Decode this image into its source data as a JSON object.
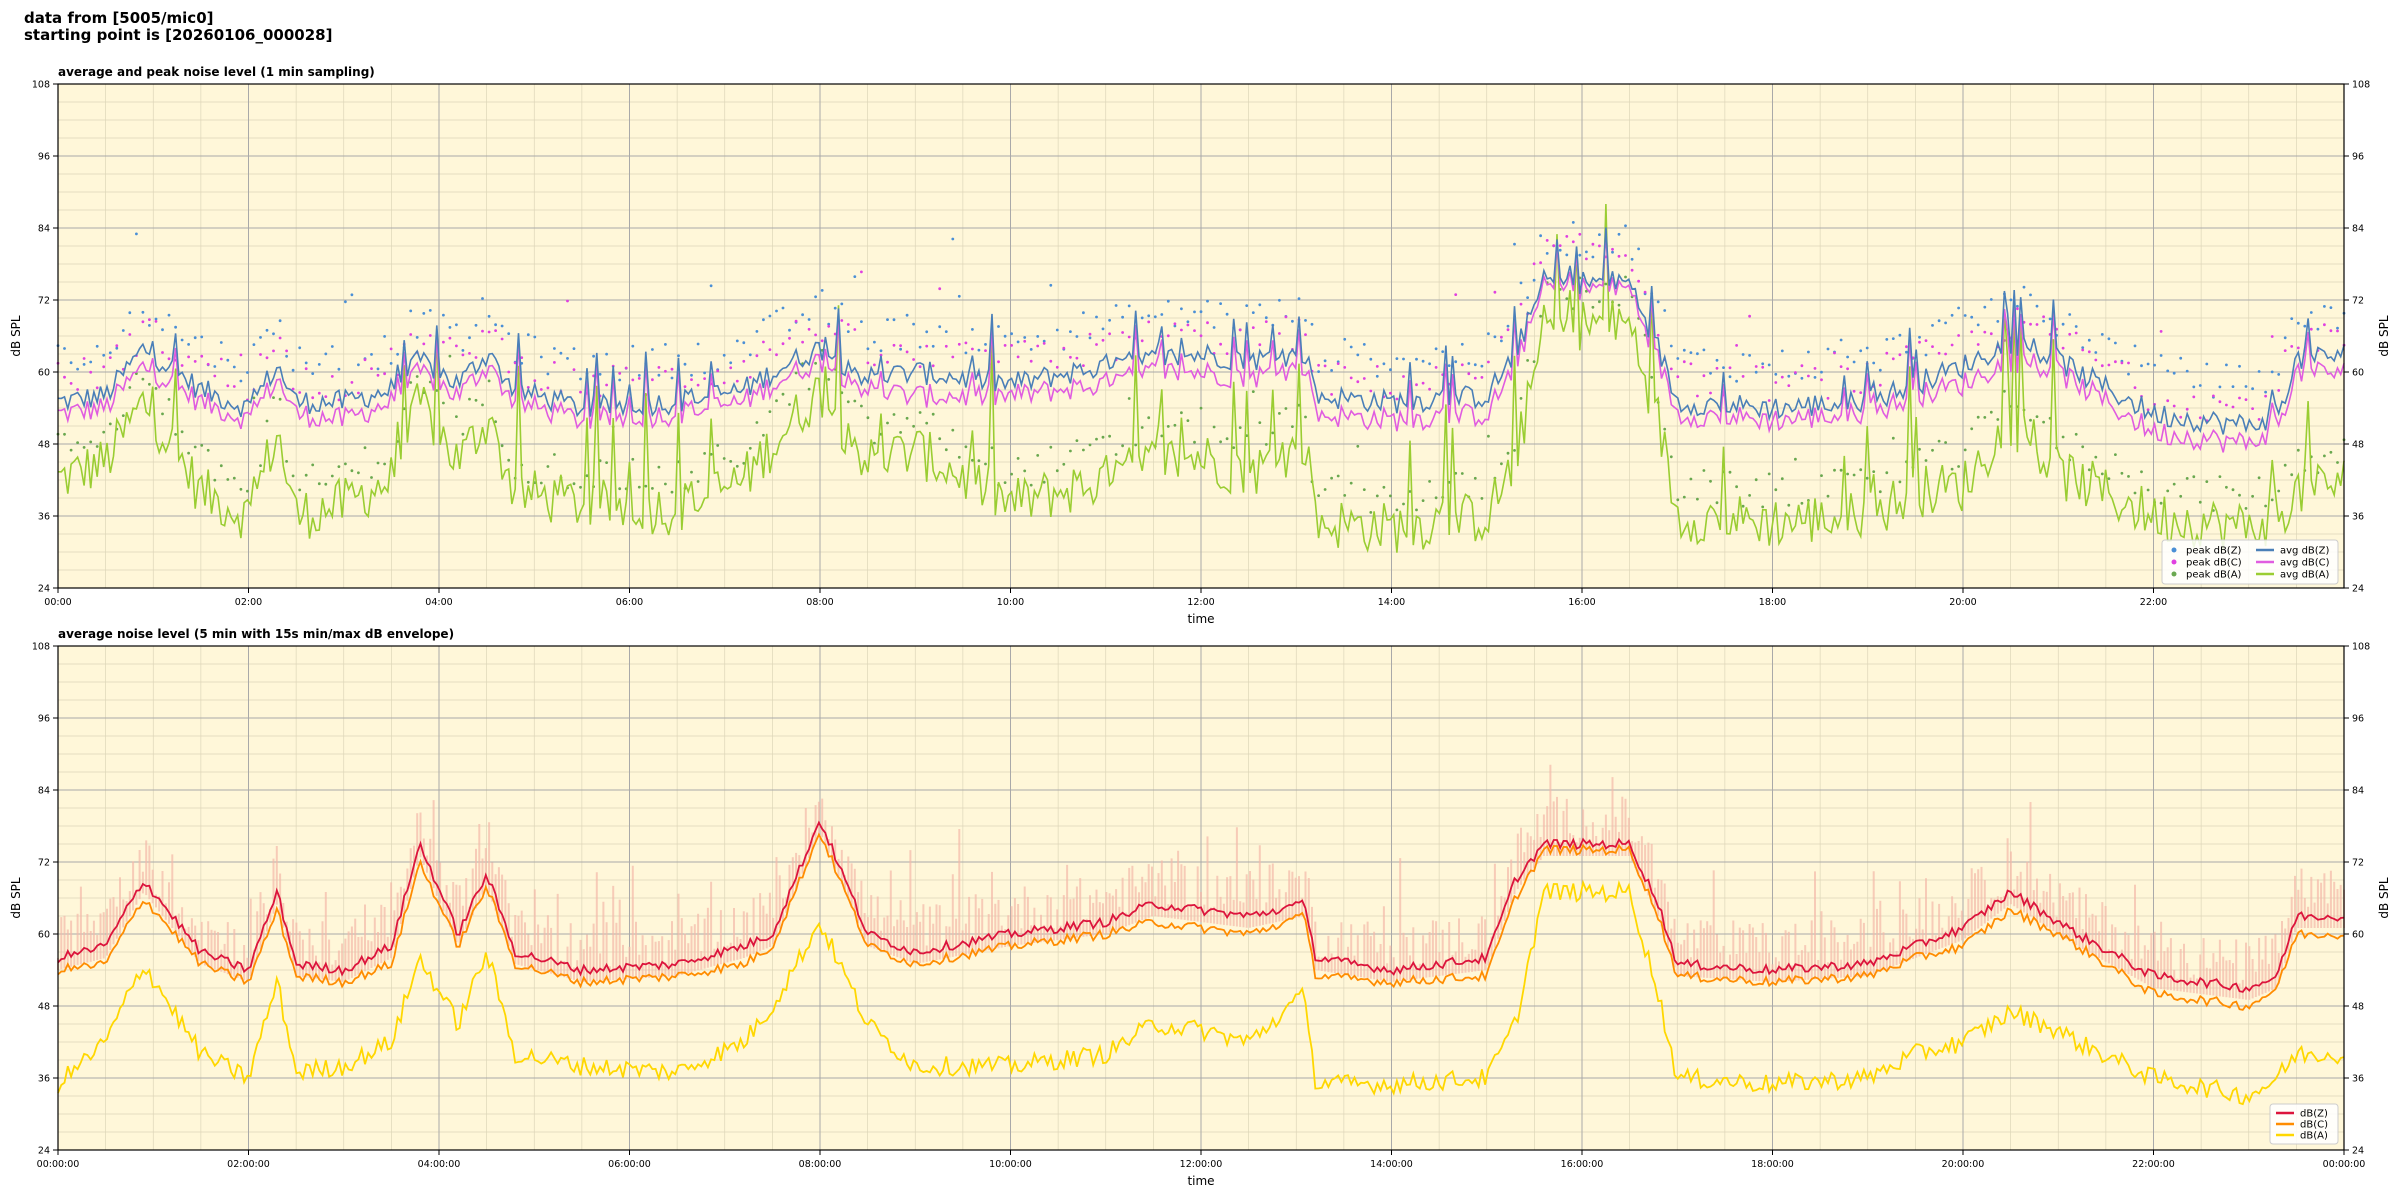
{
  "header": {
    "line1": "data from [5005/mic0]",
    "line2": "starting point is [20260106_000028]"
  },
  "colors": {
    "plot_bg": "#fff7d9",
    "peak_z": "#4a8fd6",
    "peak_c": "#e040e0",
    "peak_a": "#6aa84f",
    "avg_z": "#4a7fb8",
    "avg_c": "#e05ce0",
    "avg_a": "#9acd32",
    "db_z": "#dc143c",
    "db_c": "#ff8c00",
    "db_a": "#ffd700",
    "envelope": "#f4b8a8"
  },
  "chart_data": [
    {
      "type": "line",
      "title": "average and peak noise level (1 min sampling)",
      "xlabel": "time",
      "ylabel": "dB SPL",
      "xlim": [
        0,
        24
      ],
      "ylim": [
        24,
        108
      ],
      "yticks": [
        24,
        36,
        48,
        60,
        72,
        84,
        96,
        108
      ],
      "xtick_labels": [
        "00:00",
        "02:00",
        "04:00",
        "06:00",
        "08:00",
        "10:00",
        "12:00",
        "14:00",
        "16:00",
        "18:00",
        "20:00",
        "22:00"
      ],
      "grid": true,
      "legend_position": "bottom-right",
      "legend": [
        "peak dB(Z)",
        "peak dB(C)",
        "peak dB(A)",
        "avg dB(Z)",
        "avg dB(C)",
        "avg dB(A)"
      ],
      "x_hours": [
        0,
        0.5,
        0.9,
        1.5,
        2.0,
        2.3,
        2.5,
        3.0,
        3.5,
        3.8,
        4.2,
        4.5,
        4.8,
        5.5,
        6.5,
        7.2,
        7.5,
        8.0,
        8.5,
        9.0,
        10.0,
        11.0,
        11.5,
        12.0,
        12.5,
        13.1,
        13.2,
        14.0,
        15.0,
        15.3,
        15.6,
        16.0,
        16.5,
        16.8,
        17.0,
        18.0,
        19.0,
        19.5,
        20.0,
        20.5,
        21.0,
        21.2,
        22.0,
        23.0,
        23.3,
        23.5,
        24.0
      ],
      "series": [
        {
          "name": "avg dB(Z)",
          "values": [
            55,
            56,
            64,
            57,
            54,
            61,
            55,
            55,
            57,
            62,
            58,
            63,
            57,
            54,
            55,
            57,
            60,
            64,
            59,
            60,
            58,
            61,
            62,
            63,
            62,
            63,
            56,
            55,
            56,
            63,
            75,
            75,
            75,
            64,
            55,
            54,
            55,
            58,
            61,
            65,
            62,
            60,
            53,
            51,
            53,
            62,
            63
          ]
        },
        {
          "name": "avg dB(C)",
          "values": [
            53,
            54,
            61,
            55,
            52,
            59,
            53,
            52,
            55,
            60,
            56,
            61,
            55,
            52,
            53,
            55,
            58,
            62,
            57,
            56,
            56,
            58,
            60,
            60,
            59,
            61,
            53,
            52,
            53,
            61,
            74,
            74,
            74,
            62,
            53,
            52,
            53,
            56,
            58,
            62,
            60,
            58,
            50,
            48,
            51,
            60,
            60
          ]
        },
        {
          "name": "avg dB(A)",
          "values": [
            42,
            45,
            55,
            40,
            36,
            50,
            36,
            38,
            42,
            55,
            45,
            52,
            40,
            38,
            37,
            42,
            48,
            57,
            45,
            47,
            38,
            42,
            45,
            46,
            43,
            48,
            35,
            34,
            36,
            45,
            67,
            68,
            68,
            52,
            36,
            35,
            36,
            40,
            41,
            52,
            43,
            42,
            36,
            34,
            36,
            40,
            42
          ]
        }
      ],
      "peaks": [
        {
          "name": "peak dB(Z)",
          "offset": 4
        },
        {
          "name": "peak dB(C)",
          "offset": 3
        },
        {
          "name": "peak dB(A)",
          "offset": 2
        }
      ]
    },
    {
      "type": "line",
      "title": "average noise level (5 min with 15s min/max dB envelope)",
      "xlabel": "time",
      "ylabel": "dB SPL",
      "xlim": [
        0,
        24
      ],
      "ylim": [
        24,
        108
      ],
      "yticks": [
        24,
        36,
        48,
        60,
        72,
        84,
        96,
        108
      ],
      "xtick_labels": [
        "00:00:00",
        "02:00:00",
        "04:00:00",
        "06:00:00",
        "08:00:00",
        "10:00:00",
        "12:00:00",
        "14:00:00",
        "16:00:00",
        "18:00:00",
        "20:00:00",
        "22:00:00",
        "00:00:00"
      ],
      "grid": true,
      "legend_position": "bottom-right",
      "legend": [
        "dB(Z)",
        "dB(C)",
        "dB(A)"
      ],
      "x_hours": [
        0,
        0.5,
        0.9,
        1.5,
        2.0,
        2.3,
        2.5,
        3.0,
        3.5,
        3.8,
        4.2,
        4.5,
        4.8,
        5.5,
        6.5,
        7.2,
        7.5,
        8.0,
        8.5,
        9.0,
        10.0,
        11.0,
        11.5,
        12.0,
        12.5,
        13.1,
        13.2,
        14.0,
        15.0,
        15.3,
        15.6,
        16.0,
        16.5,
        16.8,
        17.0,
        18.0,
        19.0,
        19.5,
        20.0,
        20.5,
        21.0,
        21.2,
        22.0,
        23.0,
        23.3,
        23.5,
        24.0
      ],
      "series": [
        {
          "name": "dB(Z)",
          "values": [
            56,
            58,
            69,
            57,
            54,
            67,
            55,
            54,
            58,
            75,
            60,
            70,
            57,
            54,
            55,
            58,
            60,
            79,
            60,
            57,
            60,
            62,
            65,
            64,
            63,
            65,
            56,
            54,
            56,
            69,
            75,
            75,
            75,
            65,
            55,
            54,
            55,
            58,
            61,
            67,
            62,
            60,
            53,
            51,
            53,
            63,
            63
          ]
        },
        {
          "name": "dB(C)",
          "values": [
            54,
            55,
            66,
            55,
            52,
            64,
            53,
            52,
            55,
            72,
            58,
            68,
            55,
            52,
            53,
            55,
            58,
            77,
            58,
            55,
            58,
            60,
            62,
            61,
            60,
            63,
            53,
            52,
            53,
            66,
            74,
            74,
            74,
            63,
            53,
            52,
            53,
            56,
            58,
            64,
            60,
            58,
            50,
            48,
            51,
            60,
            60
          ]
        },
        {
          "name": "dB(A)",
          "values": [
            35,
            42,
            55,
            40,
            36,
            52,
            37,
            38,
            42,
            56,
            45,
            57,
            40,
            38,
            37,
            42,
            48,
            62,
            45,
            38,
            38,
            40,
            45,
            44,
            42,
            50,
            35,
            35,
            36,
            45,
            67,
            67,
            67,
            50,
            36,
            35,
            36,
            40,
            42,
            47,
            44,
            42,
            36,
            33,
            36,
            40,
            40
          ]
        }
      ],
      "envelope": {
        "name": "15s min/max dB envelope",
        "above": 8,
        "below": 2
      }
    }
  ]
}
